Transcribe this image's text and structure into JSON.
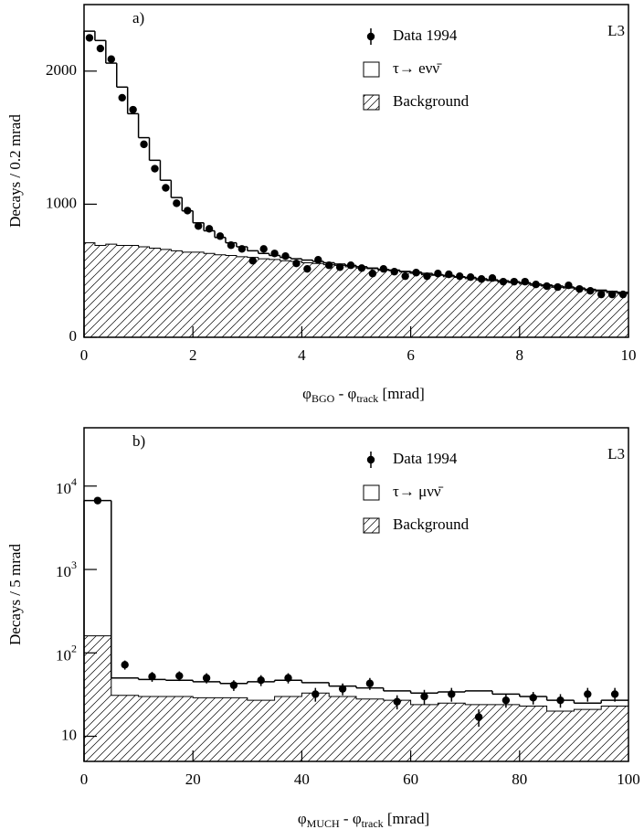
{
  "chart_data": [
    {
      "type": "histogram",
      "panel_label": "a)",
      "logo": "L3",
      "x_label": "φ_BGO - φ_track  [mrad]",
      "y_label": "Decays / 0.2 mrad",
      "legend": "top-right",
      "bins": [
        0,
        0.2,
        0.4,
        0.6,
        0.8,
        1,
        1.2,
        1.4,
        1.6,
        1.8,
        2,
        2.2,
        2.4,
        2.6,
        2.8,
        3,
        3.2,
        3.4,
        3.6,
        3.8,
        4,
        4.2,
        4.4,
        4.6,
        4.8,
        5,
        5.2,
        5.4,
        5.6,
        5.8,
        6,
        6.2,
        6.4,
        6.6,
        6.8,
        7,
        7.2,
        7.4,
        7.6,
        7.8,
        8,
        8.2,
        8.4,
        8.6,
        8.8,
        9,
        9.2,
        9.4,
        9.6,
        9.8,
        10
      ],
      "xlim": [
        0,
        10
      ],
      "ylim": [
        0,
        2500
      ],
      "xticks": [
        0,
        2,
        4,
        6,
        8,
        10
      ],
      "yticks": [
        0,
        1000,
        2000
      ],
      "log_y": false,
      "series": [
        {
          "name": "τ→ eνν̄",
          "style": "step",
          "color": "#000000",
          "values": [
            2300,
            2230,
            2060,
            1880,
            1680,
            1500,
            1330,
            1180,
            1050,
            950,
            860,
            800,
            750,
            710,
            680,
            650,
            630,
            615,
            600,
            590,
            580,
            570,
            560,
            550,
            540,
            530,
            520,
            510,
            505,
            495,
            490,
            480,
            470,
            465,
            455,
            450,
            440,
            432,
            425,
            418,
            410,
            400,
            393,
            385,
            378,
            370,
            360,
            354,
            345,
            338
          ]
        },
        {
          "name": "Background",
          "style": "hatched",
          "color": "#000000",
          "values": [
            710,
            690,
            700,
            690,
            690,
            680,
            670,
            660,
            650,
            640,
            640,
            630,
            620,
            615,
            605,
            600,
            590,
            585,
            575,
            570,
            560,
            555,
            545,
            540,
            530,
            520,
            515,
            505,
            500,
            490,
            480,
            470,
            465,
            455,
            450,
            440,
            430,
            425,
            415,
            410,
            400,
            390,
            385,
            375,
            370,
            360,
            350,
            345,
            335,
            330
          ]
        }
      ],
      "points": {
        "name": "Data 1994",
        "color": "#000000",
        "x": [
          0.1,
          0.3,
          0.5,
          0.7,
          0.9,
          1.1,
          1.3,
          1.5,
          1.7,
          1.9,
          2.1,
          2.3,
          2.5,
          2.7,
          2.9,
          3.1,
          3.3,
          3.5,
          3.7,
          3.9,
          4.1,
          4.3,
          4.5,
          4.7,
          4.9,
          5.1,
          5.3,
          5.5,
          5.7,
          5.9,
          6.1,
          6.3,
          6.5,
          6.7,
          6.9,
          7.1,
          7.3,
          7.5,
          7.7,
          7.9,
          8.1,
          8.3,
          8.5,
          8.7,
          8.9,
          9.1,
          9.3,
          9.5,
          9.7,
          9.9
        ],
        "values": [
          2250,
          2170,
          2090,
          1800,
          1710,
          1450,
          1267,
          1123,
          1007,
          952,
          836,
          815,
          760,
          692,
          664,
          575,
          664,
          630,
          610,
          555,
          514,
          582,
          541,
          527,
          541,
          520,
          479,
          514,
          493,
          459,
          486,
          459,
          479,
          473,
          459,
          452,
          438,
          445,
          418,
          418,
          418,
          397,
          384,
          377,
          390,
          363,
          349,
          322,
          322,
          322
        ]
      }
    },
    {
      "type": "histogram",
      "panel_label": "b)",
      "logo": "L3",
      "x_label": "φ_MUCH - φ_track  [mrad]",
      "y_label": "Decays / 5 mrad",
      "legend": "top-right",
      "bins": [
        0,
        5,
        10,
        15,
        20,
        25,
        30,
        35,
        40,
        45,
        50,
        55,
        60,
        65,
        70,
        75,
        80,
        85,
        90,
        95,
        100
      ],
      "xlim": [
        0,
        100
      ],
      "ylim": [
        5,
        50000
      ],
      "xticks": [
        0,
        20,
        40,
        60,
        80,
        100
      ],
      "yticks": [
        10,
        {
          "value": 100,
          "label": "10^2"
        },
        {
          "value": 1000,
          "label": "10^3"
        },
        {
          "value": 10000,
          "label": "10^4"
        }
      ],
      "log_y": true,
      "series": [
        {
          "name": "τ→ μνν̄",
          "style": "step",
          "color": "#000000",
          "values": [
            6700,
            50,
            48,
            47,
            45,
            43,
            45,
            47,
            44,
            40,
            38,
            35,
            33,
            34,
            35,
            32,
            30,
            27,
            25,
            27
          ]
        },
        {
          "name": "Background",
          "style": "hatched",
          "color": "#000000",
          "values": [
            160,
            31,
            30,
            30,
            29,
            29,
            27,
            30,
            33,
            30,
            28,
            27,
            24,
            25,
            24,
            24,
            23,
            20,
            21,
            23
          ]
        }
      ],
      "points": {
        "name": "Data 1994",
        "color": "#000000",
        "x": [
          2.5,
          7.5,
          12.5,
          17.5,
          22.5,
          27.5,
          32.5,
          37.5,
          42.5,
          47.5,
          52.5,
          57.5,
          62.5,
          67.5,
          72.5,
          77.5,
          82.5,
          87.5,
          92.5,
          97.5
        ],
        "values": [
          6700,
          72,
          52,
          53,
          50,
          41,
          47,
          50,
          32,
          37,
          43,
          26,
          30,
          32,
          17,
          27,
          29,
          27,
          32,
          32
        ],
        "errors": [
          80,
          9,
          7,
          7,
          7,
          6,
          7,
          7,
          6,
          6,
          7,
          5,
          6,
          6,
          4,
          5,
          5,
          5,
          6,
          6
        ]
      }
    }
  ]
}
